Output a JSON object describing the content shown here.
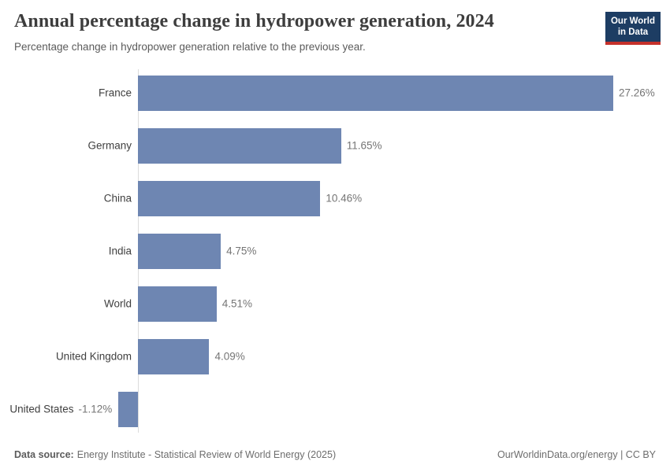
{
  "header": {
    "title": "Annual percentage change in hydropower generation, 2024",
    "subtitle": "Percentage change in hydropower generation relative to the previous year.",
    "logo": {
      "line1": "Our World",
      "line2": "in Data"
    }
  },
  "chart_data": {
    "type": "bar",
    "orientation": "horizontal",
    "title": "Annual percentage change in hydropower generation, 2024",
    "subtitle": "Percentage change in hydropower generation relative to the previous year.",
    "categories": [
      "France",
      "Germany",
      "China",
      "India",
      "World",
      "United Kingdom",
      "United States"
    ],
    "values": [
      27.26,
      11.65,
      10.46,
      4.75,
      4.51,
      4.09,
      -1.12
    ],
    "value_labels": [
      "27.26%",
      "11.65%",
      "10.46%",
      "4.75%",
      "4.51%",
      "4.09%",
      "-1.12%"
    ],
    "unit": "%",
    "xlim": [
      -2,
      30
    ],
    "grid": false,
    "legend": "none",
    "axis_ticks_shown": false
  },
  "footer": {
    "data_source_label": "Data source:",
    "data_source_text": "Energy Institute - Statistical Review of World Energy (2025)",
    "right_text": "OurWorldinData.org/energy | CC BY"
  },
  "colors": {
    "bar": "#6e86b2",
    "logo_background": "#1d3d63",
    "logo_accent": "#c5312b",
    "axis_line": "#dcdcdc"
  }
}
